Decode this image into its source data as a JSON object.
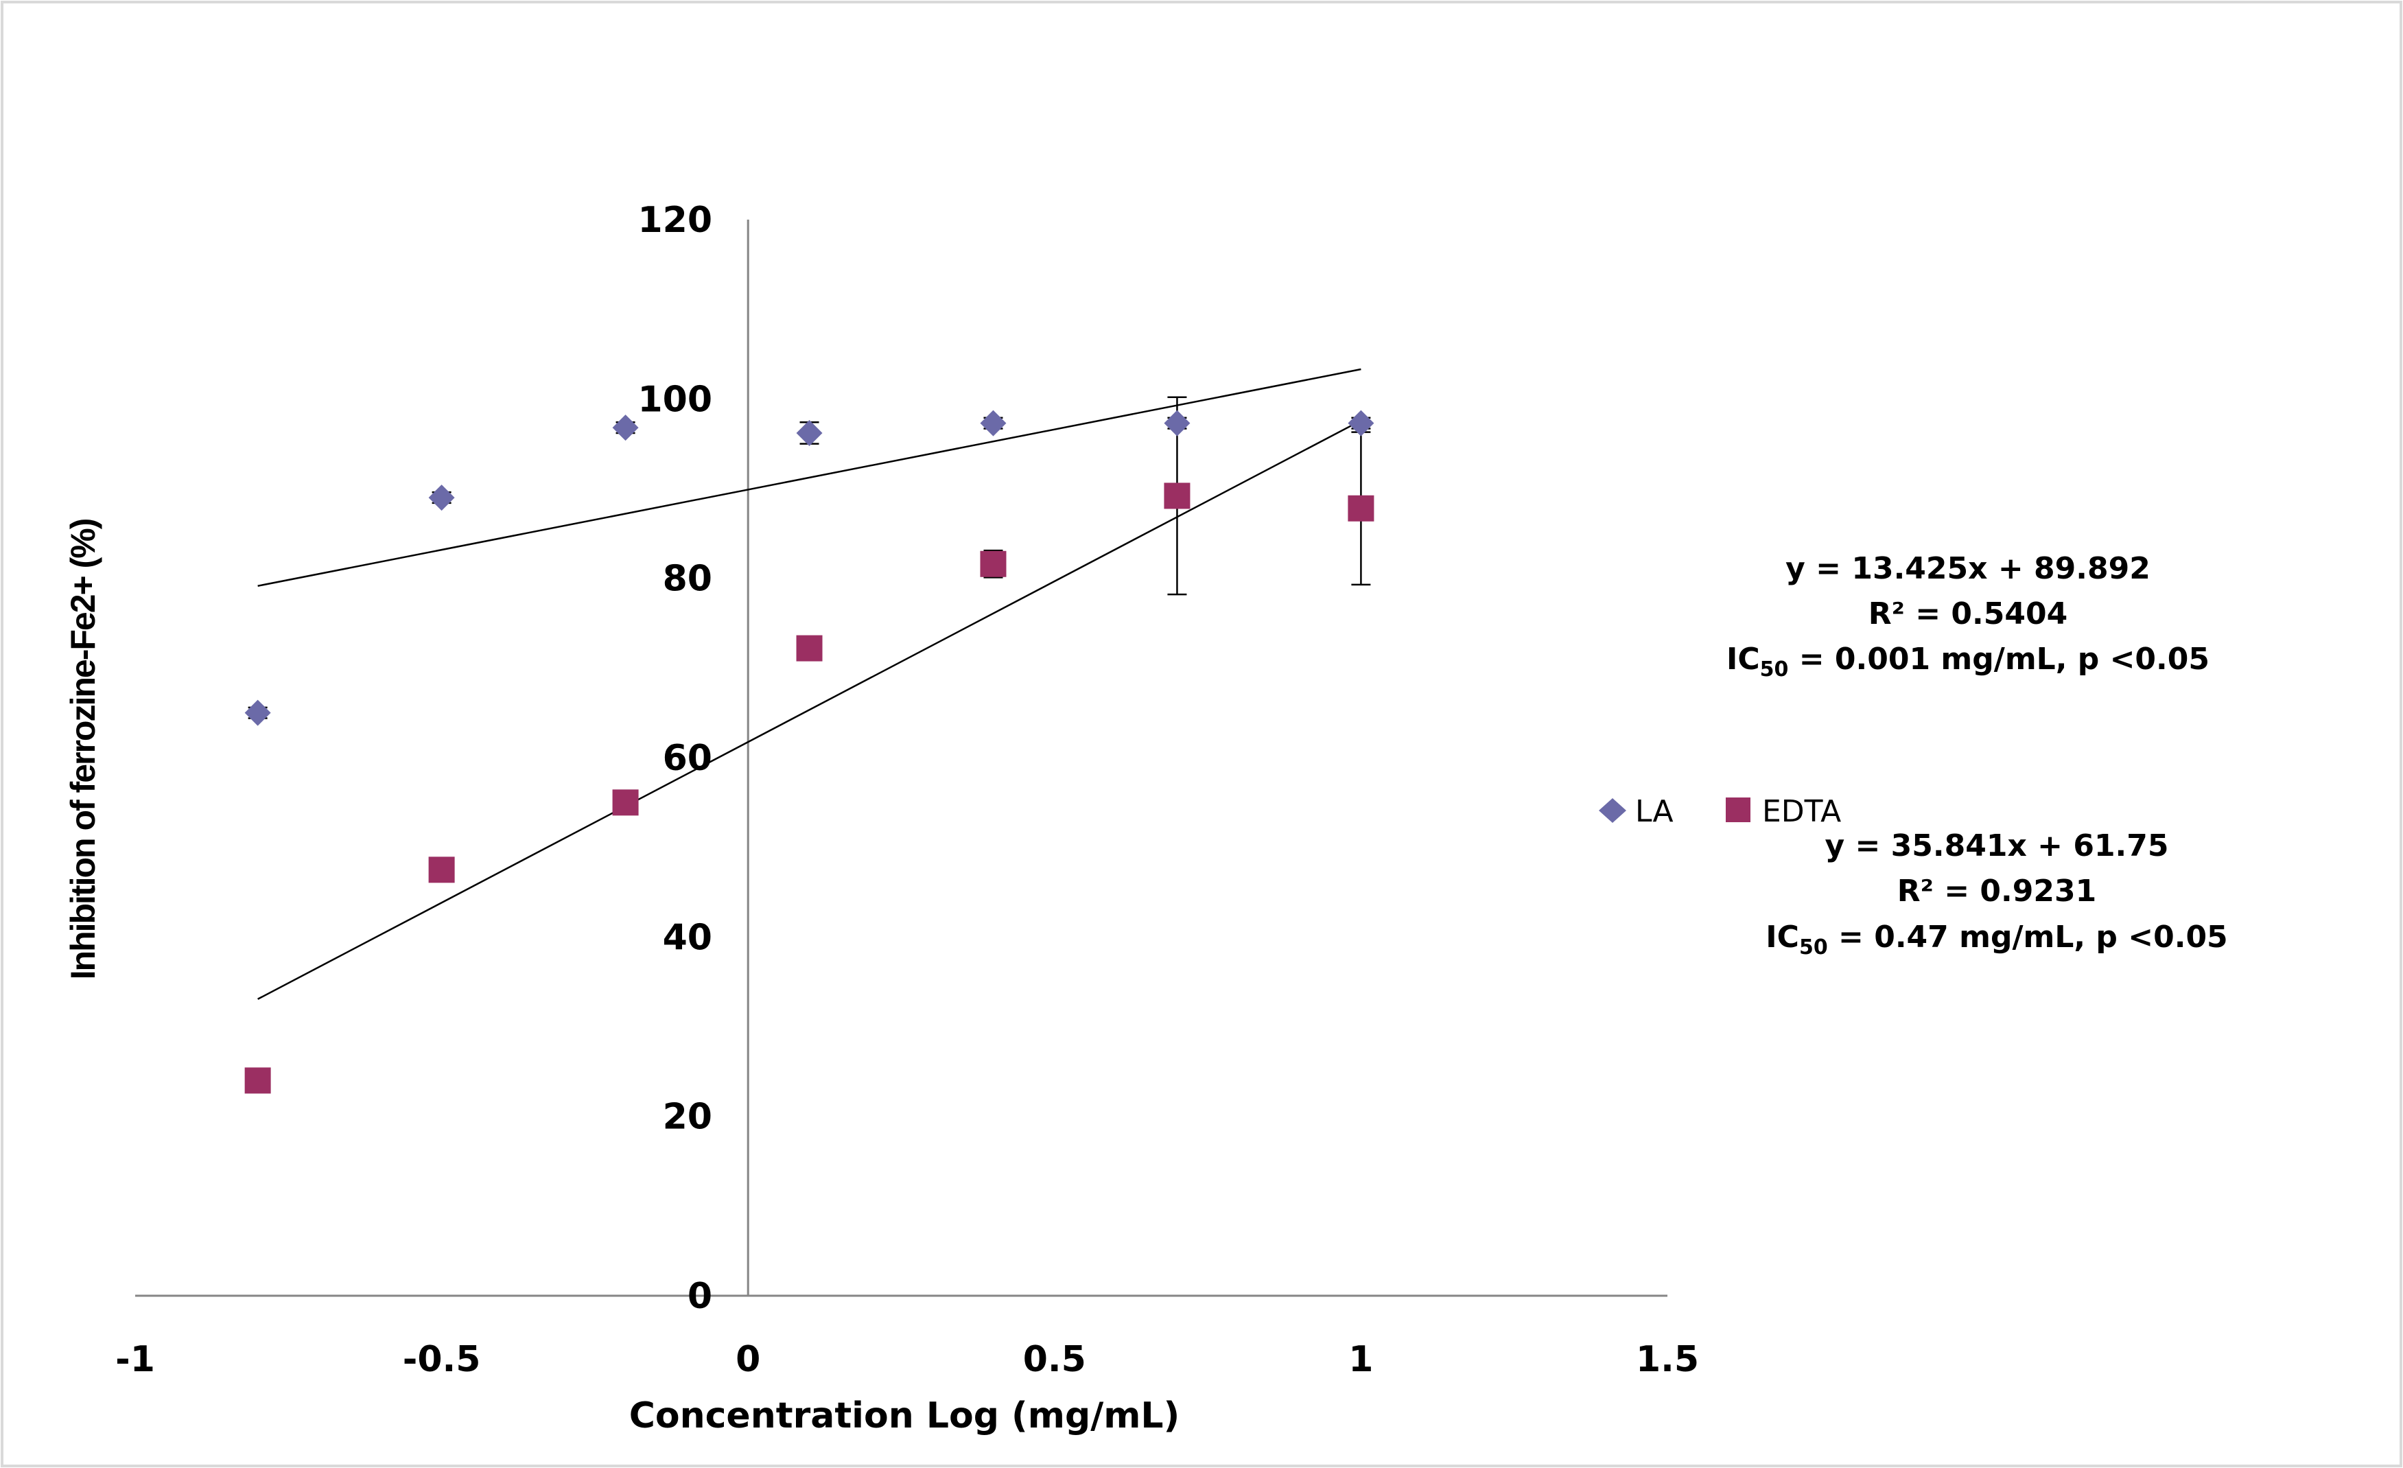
{
  "chart_data": {
    "type": "scatter",
    "title": "",
    "xlabel": "Concentration Log (mg/mL)",
    "ylabel": "Inhibition of ferrozine-Fe2+ (%)",
    "xlim": [
      -1,
      1.5
    ],
    "ylim": [
      0,
      120
    ],
    "x_ticks": [
      -1,
      -0.5,
      0,
      0.5,
      1,
      1.5
    ],
    "x_tick_labels": [
      "-1",
      "-0.5",
      "0",
      "0.5",
      "1",
      "1.5"
    ],
    "y_ticks": [
      0,
      20,
      40,
      60,
      80,
      100,
      120
    ],
    "y_tick_labels": [
      "0",
      "20",
      "40",
      "60",
      "80",
      "100",
      "120"
    ],
    "grid": false,
    "legend_position": "right",
    "series": [
      {
        "name": "LA",
        "marker": "diamond",
        "color": "#6b6aa8",
        "x": [
          -0.8,
          -0.5,
          -0.2,
          0.1,
          0.4,
          0.7,
          1.0
        ],
        "y": [
          65,
          89,
          96.8,
          96.2,
          97.3,
          97.3,
          97.3
        ],
        "error": [
          0.6,
          0.6,
          0.6,
          1.2,
          0.6,
          0.6,
          0.6
        ],
        "trendline": {
          "slope": 13.425,
          "intercept": 89.892,
          "x_range": [
            -0.8,
            1.0
          ]
        }
      },
      {
        "name": "EDTA",
        "marker": "square",
        "color": "#9b2f62",
        "x": [
          -0.8,
          -0.5,
          -0.2,
          0.1,
          0.4,
          0.7,
          1.0
        ],
        "y": [
          24,
          47.5,
          55,
          72.2,
          81.6,
          89.2,
          87.8
        ],
        "error": [
          0.6,
          0.6,
          0.6,
          0.6,
          1.5,
          11,
          8.5
        ],
        "trendline": {
          "slope": 35.841,
          "intercept": 61.75,
          "x_range": [
            -0.8,
            1.0
          ]
        }
      }
    ],
    "annotations": [
      {
        "series": "LA",
        "equation": "y = 13.425x + 89.892",
        "r_squared": "R² = 0.5404",
        "ic50_prefix": "IC",
        "ic50_sub": "50",
        "ic50_rest": " = 0.001 mg/mL, p <0.05"
      },
      {
        "series": "EDTA",
        "equation": "y = 35.841x + 61.75",
        "r_squared": "R² = 0.9231",
        "ic50_prefix": "IC",
        "ic50_sub": "50",
        "ic50_rest": " = 0.47 mg/mL, p <0.05"
      }
    ]
  },
  "colors": {
    "frame_border": "#d9d9d9",
    "axis": "#868686",
    "trendline": "#000000",
    "error_bar": "#000000"
  }
}
